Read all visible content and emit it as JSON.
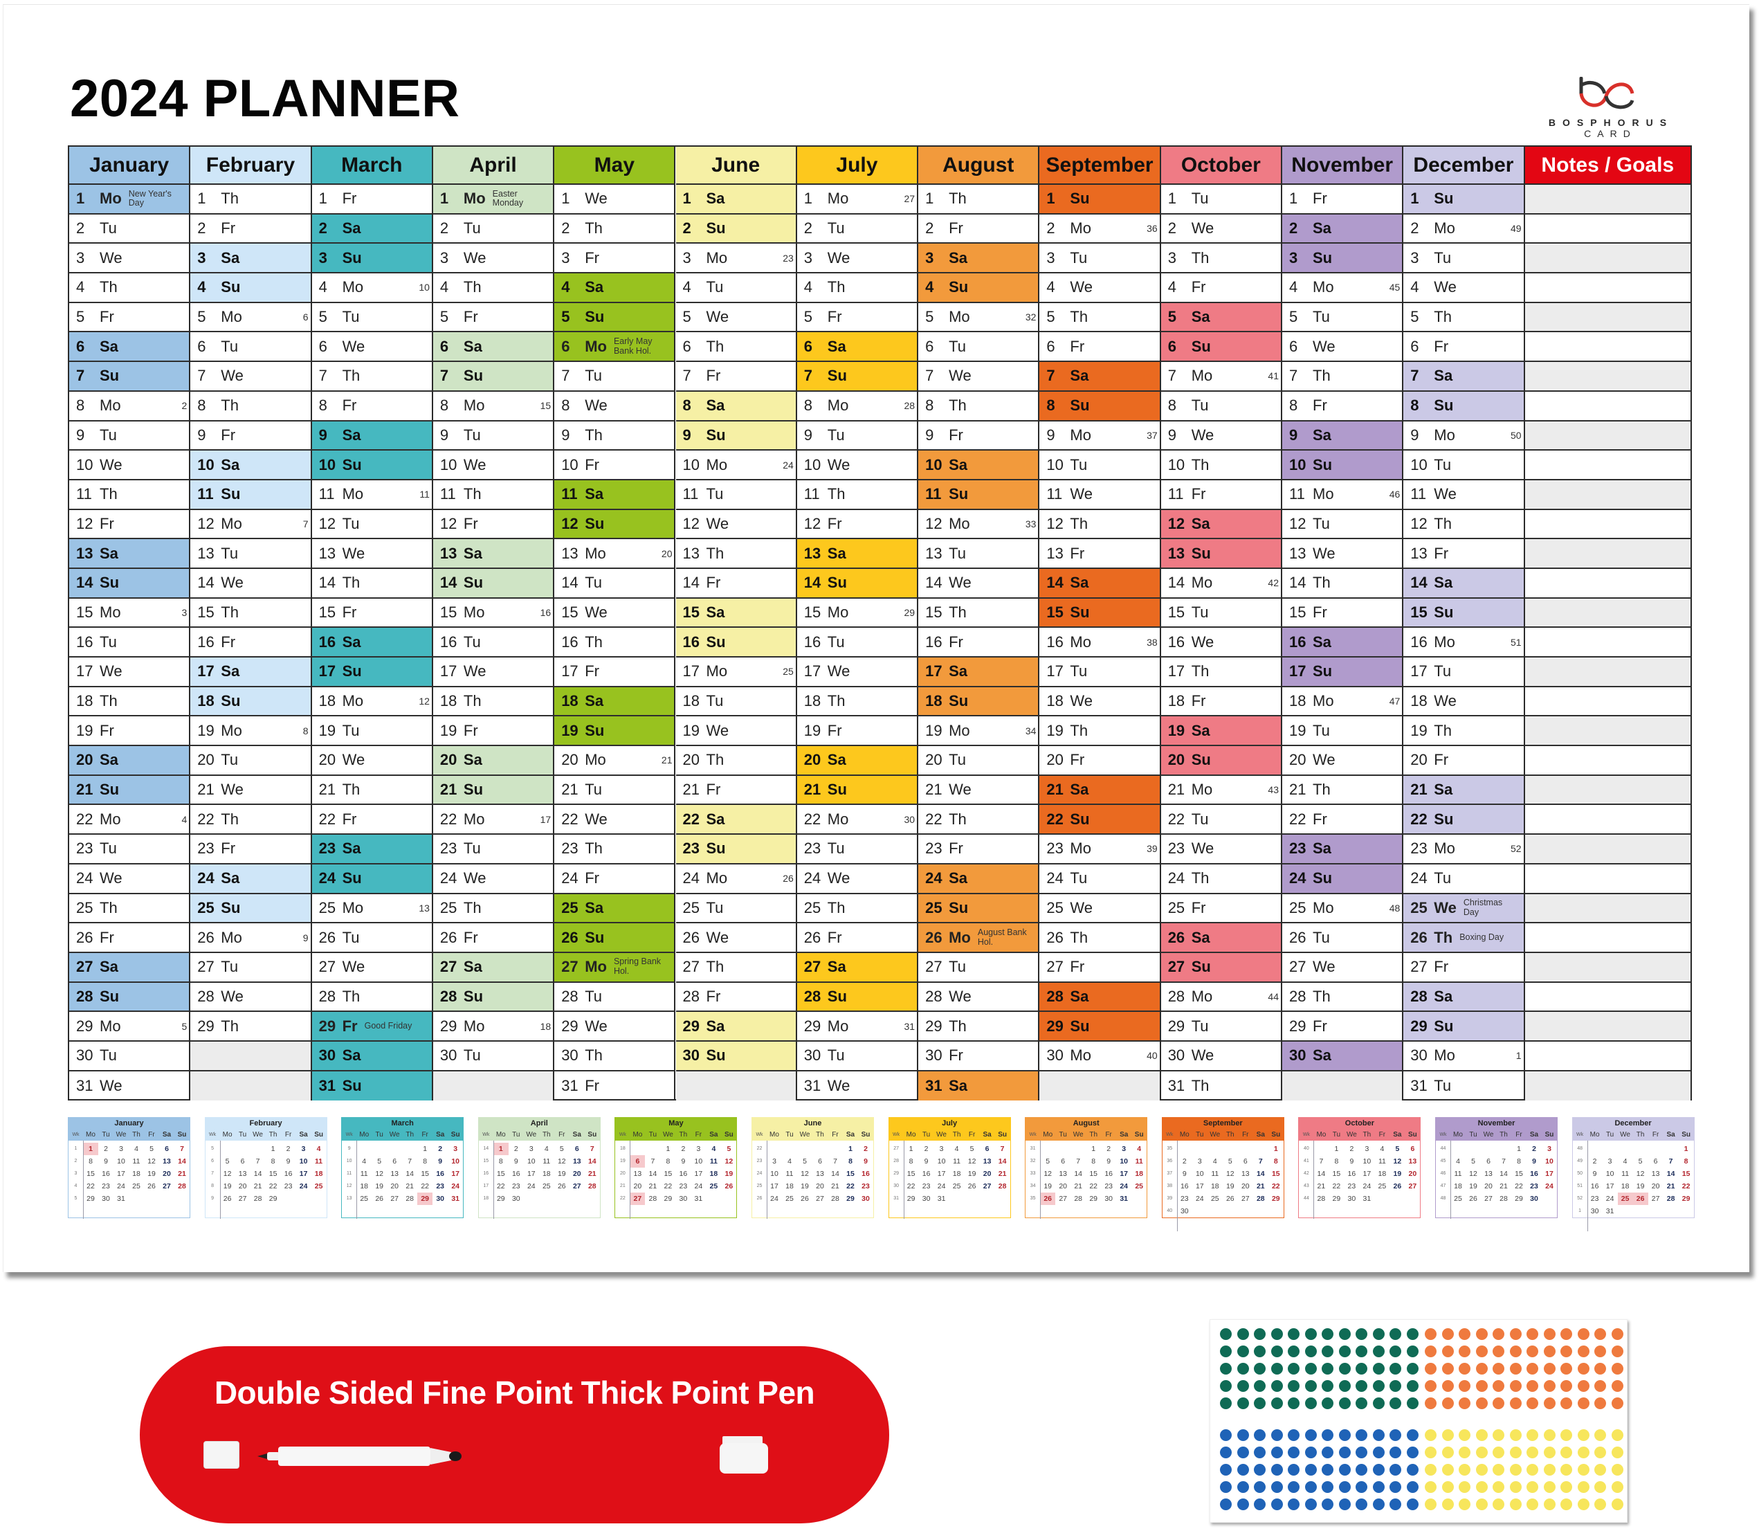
{
  "title": "2024 PLANNER",
  "brand": {
    "name": "BOSPHORUS",
    "sub": "CARD"
  },
  "notes_header": "Notes / Goals",
  "notes_color": "#e30613",
  "day_abbr": [
    "Mo",
    "Tu",
    "We",
    "Th",
    "Fr",
    "Sa",
    "Su"
  ],
  "months": [
    {
      "name": "January",
      "color": "#9cc3e5",
      "days": 31,
      "start": 0,
      "first_week": 1,
      "holidays": {
        "1": "New Year's Day"
      }
    },
    {
      "name": "February",
      "color": "#cfe6f8",
      "days": 29,
      "start": 3,
      "first_week": 5,
      "holidays": {}
    },
    {
      "name": "March",
      "color": "#46b8c0",
      "days": 31,
      "start": 4,
      "first_week": 9,
      "holidays": {
        "29": "Good Friday"
      }
    },
    {
      "name": "April",
      "color": "#cfe4c5",
      "days": 30,
      "start": 0,
      "first_week": 14,
      "holidays": {
        "1": "Easter Monday"
      }
    },
    {
      "name": "May",
      "color": "#98c21f",
      "days": 31,
      "start": 2,
      "first_week": 18,
      "holidays": {
        "6": "Early May Bank Hol.",
        "27": "Spring Bank Hol."
      }
    },
    {
      "name": "June",
      "color": "#f6f0a5",
      "days": 30,
      "start": 5,
      "first_week": 22,
      "holidays": {}
    },
    {
      "name": "July",
      "color": "#fdc81d",
      "days": 31,
      "start": 0,
      "first_week": 27,
      "holidays": {}
    },
    {
      "name": "August",
      "color": "#f29a3c",
      "days": 31,
      "start": 3,
      "first_week": 31,
      "holidays": {
        "26": "August Bank Hol."
      }
    },
    {
      "name": "September",
      "color": "#ea6a20",
      "days": 30,
      "start": 6,
      "first_week": 35,
      "holidays": {}
    },
    {
      "name": "October",
      "color": "#ef7b85",
      "days": 31,
      "start": 1,
      "first_week": 40,
      "holidays": {}
    },
    {
      "name": "November",
      "color": "#b09bcc",
      "days": 30,
      "start": 4,
      "first_week": 44,
      "holidays": {}
    },
    {
      "name": "December",
      "color": "#cbc9e6",
      "days": 31,
      "start": 6,
      "first_week": 48,
      "holidays": {
        "25": "Christmas Day",
        "26": "Boxing Day"
      }
    }
  ],
  "mini_week_label": "Wk",
  "pen_banner": {
    "text": "Double Sided Fine Point Thick Point Pen",
    "color": "#df0f17"
  },
  "stickers": {
    "colors": [
      "#0f6b55",
      "#ef7a3e",
      "#1f63b7",
      "#f7e65c"
    ],
    "rows": 5,
    "cols": 12
  }
}
